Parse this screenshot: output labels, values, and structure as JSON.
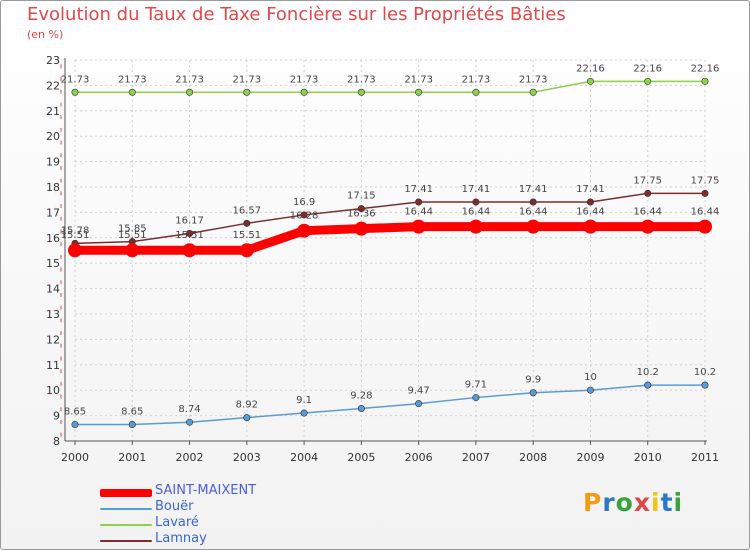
{
  "header": {
    "title": "Evolution du Taux de Taxe Foncière sur les Propriétés Bâties",
    "unit": "(en %)"
  },
  "colors": {
    "title": "#e0474a",
    "grid_red": "#e0474a",
    "grid_gray": "#cfcfcf",
    "axis": "#555555"
  },
  "logo": {
    "text": "Proxiti",
    "letters": [
      "P",
      "r",
      "o",
      "x",
      "i",
      "t",
      "i"
    ]
  },
  "chart_data": {
    "type": "line",
    "title": "Evolution du Taux de Taxe Foncière sur les Propriétés Bâties",
    "ylabel": "(en %)",
    "xlabel": "",
    "ylim": [
      8,
      23
    ],
    "yticks": [
      8,
      9,
      10,
      11,
      12,
      13,
      14,
      15,
      16,
      17,
      18,
      19,
      20,
      21,
      22,
      23
    ],
    "categories": [
      "2000",
      "2001",
      "2002",
      "2003",
      "2004",
      "2005",
      "2006",
      "2007",
      "2008",
      "2009",
      "2010",
      "2011"
    ],
    "legend_position": "bottom-left",
    "series": [
      {
        "name": "SAINT-MAIXENT",
        "color": "#ff0000",
        "values": [
          15.51,
          15.51,
          15.51,
          15.51,
          16.28,
          16.36,
          16.44,
          16.44,
          16.44,
          16.44,
          16.44,
          16.44
        ],
        "labels": [
          "15.51",
          "15.51",
          "15.51",
          "15.51",
          "16.28",
          "16.36",
          "16.44",
          "16.44",
          "16.44",
          "16.44",
          "16.44",
          "16.44"
        ]
      },
      {
        "name": "Bouër",
        "color": "#5b9bd5",
        "values": [
          8.65,
          8.65,
          8.74,
          8.92,
          9.1,
          9.28,
          9.47,
          9.71,
          9.9,
          10,
          10.2,
          10.2
        ],
        "labels": [
          "8.65",
          "8.65",
          "8.74",
          "8.92",
          "9.1",
          "9.28",
          "9.47",
          "9.71",
          "9.9",
          "10",
          "10.2",
          "10.2"
        ]
      },
      {
        "name": "Lavaré",
        "color": "#8ed14a",
        "values": [
          21.73,
          21.73,
          21.73,
          21.73,
          21.73,
          21.73,
          21.73,
          21.73,
          21.73,
          22.16,
          22.16,
          22.16
        ],
        "labels": [
          "21.73",
          "21.73",
          "21.73",
          "21.73",
          "21.73",
          "21.73",
          "21.73",
          "21.73",
          "21.73",
          "22.16",
          "22.16",
          "22.16"
        ]
      },
      {
        "name": "Lamnay",
        "color": "#7b2d2d",
        "values": [
          15.78,
          15.85,
          16.17,
          16.57,
          16.9,
          17.15,
          17.41,
          17.41,
          17.41,
          17.41,
          17.75,
          17.75
        ],
        "labels": [
          "15.78",
          "15.85",
          "16.17",
          "16.57",
          "16.9",
          "17.15",
          "17.41",
          "17.41",
          "17.41",
          "17.41",
          "17.75",
          "17.75"
        ]
      }
    ]
  }
}
